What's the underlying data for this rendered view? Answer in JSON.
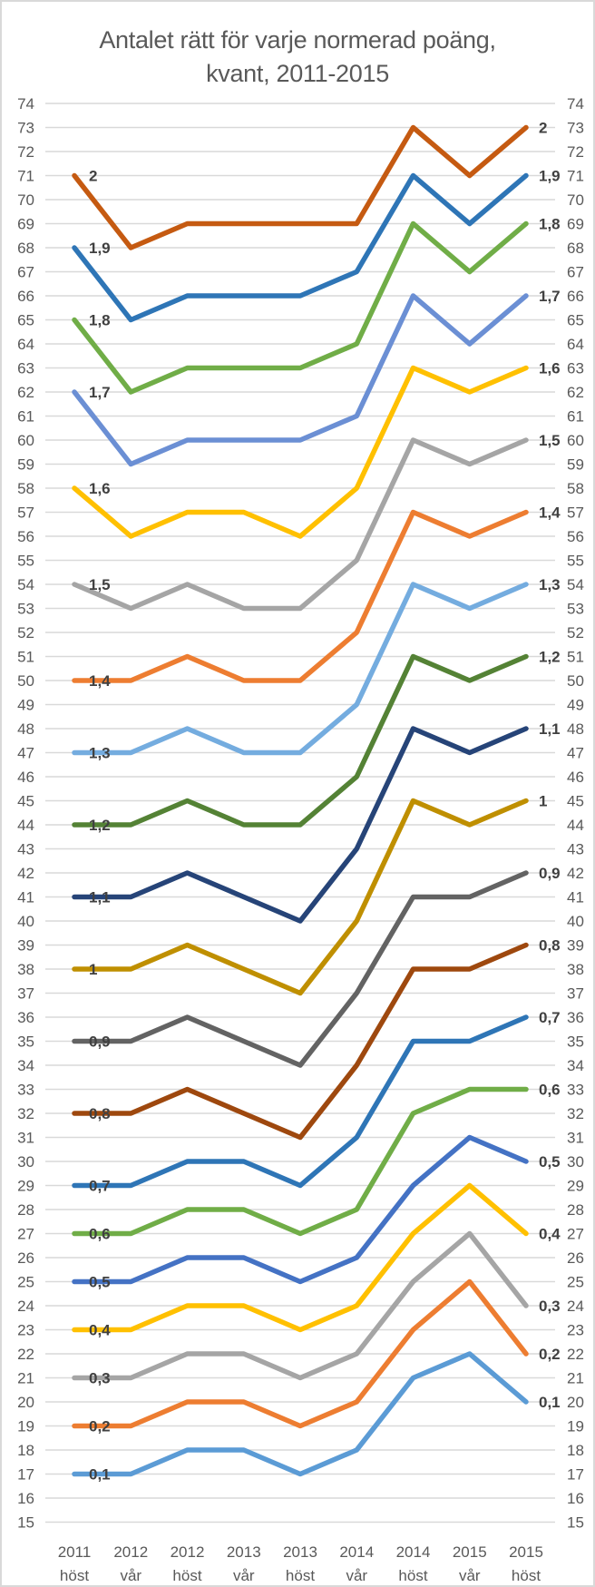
{
  "title": {
    "line1": "Antalet rätt för varje normerad poäng,",
    "line2": "kvant, 2011-2015"
  },
  "chart_data": {
    "type": "line",
    "title": "Antalet rätt för varje normerad poäng, kvant, 2011-2015",
    "categories": [
      "2011 höst",
      "2012 vår",
      "2012 höst",
      "2013 vår",
      "2013 höst",
      "2014 vår",
      "2014 höst",
      "2015 vår",
      "2015 höst"
    ],
    "xlabel": "",
    "ylabel": "",
    "ylim": [
      15,
      74
    ],
    "y_tick_step": 1,
    "y_axis_sides": [
      "left",
      "right"
    ],
    "grid": true,
    "grid_color": "#D9D9D9",
    "axis_text_color": "#595959",
    "data_label_color": "#404040",
    "series_labels_shown": "start and end of each line, value = normed score name",
    "series": [
      {
        "name": "0,1",
        "color": "#5B9BD5",
        "values": [
          17,
          17,
          18,
          18,
          17,
          18,
          21,
          22,
          20
        ]
      },
      {
        "name": "0,2",
        "color": "#ED7D31",
        "values": [
          19,
          19,
          20,
          20,
          19,
          20,
          23,
          25,
          22
        ]
      },
      {
        "name": "0,3",
        "color": "#A5A5A5",
        "values": [
          21,
          21,
          22,
          22,
          21,
          22,
          25,
          27,
          24
        ]
      },
      {
        "name": "0,4",
        "color": "#FFC000",
        "values": [
          23,
          23,
          24,
          24,
          23,
          24,
          27,
          29,
          27
        ]
      },
      {
        "name": "0,5",
        "color": "#4472C4",
        "values": [
          25,
          25,
          26,
          26,
          25,
          26,
          29,
          31,
          30
        ]
      },
      {
        "name": "0,6",
        "color": "#70AD47",
        "values": [
          27,
          27,
          28,
          28,
          27,
          28,
          32,
          33,
          33
        ]
      },
      {
        "name": "0,7",
        "color": "#2E75B6",
        "values": [
          29,
          29,
          30,
          30,
          29,
          31,
          35,
          35,
          36
        ]
      },
      {
        "name": "0,8",
        "color": "#9E480E",
        "values": [
          32,
          32,
          33,
          32,
          31,
          34,
          38,
          38,
          39
        ]
      },
      {
        "name": "0,9",
        "color": "#636363",
        "values": [
          35,
          35,
          36,
          35,
          34,
          37,
          41,
          41,
          42
        ]
      },
      {
        "name": "1",
        "color": "#BF8F00",
        "values": [
          38,
          38,
          39,
          38,
          37,
          40,
          45,
          44,
          45
        ]
      },
      {
        "name": "1,1",
        "color": "#264478",
        "values": [
          41,
          41,
          42,
          41,
          40,
          43,
          48,
          47,
          48
        ]
      },
      {
        "name": "1,2",
        "color": "#548235",
        "values": [
          44,
          44,
          45,
          44,
          44,
          46,
          51,
          50,
          51
        ]
      },
      {
        "name": "1,3",
        "color": "#74ACDF",
        "values": [
          47,
          47,
          48,
          47,
          47,
          49,
          54,
          53,
          54
        ]
      },
      {
        "name": "1,4",
        "color": "#ED7D31",
        "values": [
          50,
          50,
          51,
          50,
          50,
          52,
          57,
          56,
          57
        ]
      },
      {
        "name": "1,5",
        "color": "#A5A5A5",
        "values": [
          54,
          53,
          54,
          53,
          53,
          55,
          60,
          59,
          60
        ]
      },
      {
        "name": "1,6",
        "color": "#FFC000",
        "values": [
          58,
          56,
          57,
          57,
          56,
          58,
          63,
          62,
          63
        ]
      },
      {
        "name": "1,7",
        "color": "#6B8FD4",
        "values": [
          62,
          59,
          60,
          60,
          60,
          61,
          66,
          64,
          66
        ]
      },
      {
        "name": "1,8",
        "color": "#70AD47",
        "values": [
          65,
          62,
          63,
          63,
          63,
          64,
          69,
          67,
          69
        ]
      },
      {
        "name": "1,9",
        "color": "#2E75B6",
        "values": [
          68,
          65,
          66,
          66,
          66,
          67,
          71,
          69,
          71
        ]
      },
      {
        "name": "2",
        "color": "#C55A11",
        "values": [
          71,
          68,
          69,
          69,
          69,
          69,
          73,
          71,
          73
        ]
      }
    ]
  }
}
